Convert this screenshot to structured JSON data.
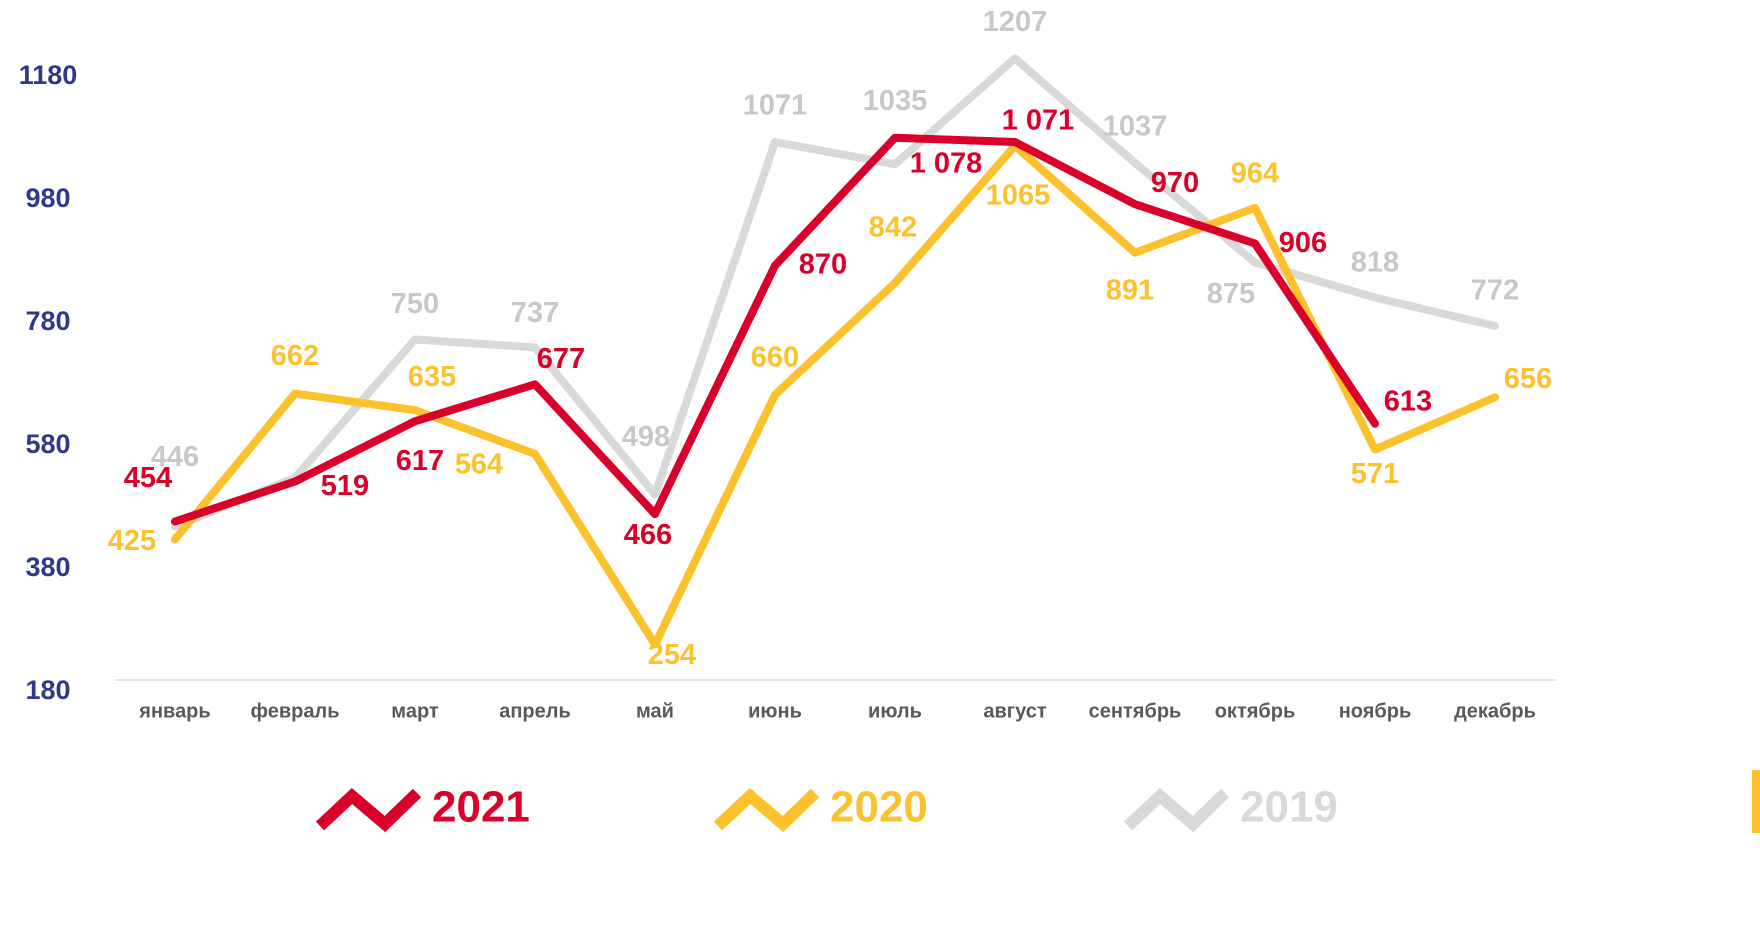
{
  "chart_data": {
    "type": "line",
    "categories": [
      "январь",
      "февраль",
      "март",
      "апрель",
      "май",
      "июнь",
      "июль",
      "август",
      "сентябрь",
      "октябрь",
      "ноябрь",
      "декабрь"
    ],
    "series": [
      {
        "name": "2019",
        "color": "#d9d9d9",
        "values": [
          446,
          525,
          750,
          737,
          498,
          1071,
          1035,
          1207,
          1037,
          875,
          818,
          772
        ],
        "value_labels": [
          "446",
          null,
          "750",
          "737",
          "498",
          "1071",
          "1035",
          "1207",
          "1037",
          "875",
          "818",
          "772"
        ]
      },
      {
        "name": "2020",
        "color": "#fcc22e",
        "values": [
          425,
          662,
          635,
          564,
          254,
          660,
          842,
          1065,
          891,
          964,
          571,
          656
        ]
      },
      {
        "name": "2021",
        "color": "#d9002a",
        "values": [
          454,
          519,
          617,
          677,
          466,
          870,
          1078,
          1071,
          970,
          906,
          613,
          null
        ],
        "value_labels": [
          "454",
          "519",
          "617",
          "677",
          "466",
          "870",
          "1 078",
          "1 071",
          "970",
          "906",
          "613",
          null
        ]
      }
    ],
    "ylim": [
      180,
      1180
    ],
    "yticks": [
      180,
      380,
      580,
      780,
      980,
      1180
    ],
    "grid": false,
    "legend": "bottom"
  }
}
